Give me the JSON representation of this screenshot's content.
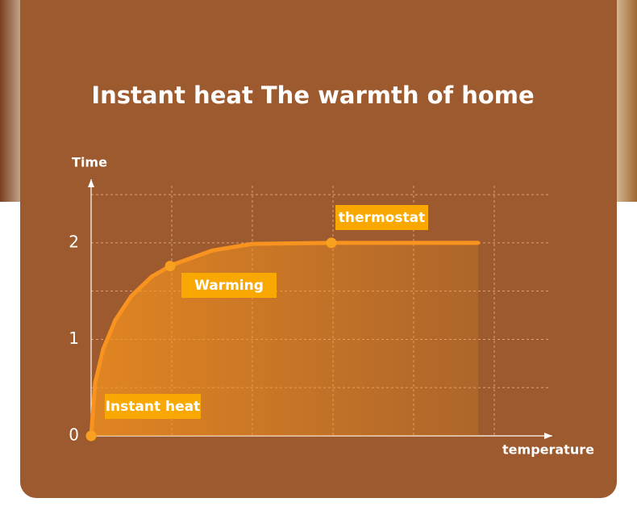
{
  "chart_data": {
    "type": "line",
    "title": "Instant heat The warmth of home",
    "xlabel": "temperature",
    "ylabel": "Time",
    "x": [
      0,
      0.05,
      0.15,
      0.3,
      0.5,
      0.75,
      1,
      1.5,
      2,
      3,
      4,
      4.8
    ],
    "values": [
      0,
      0.55,
      0.9,
      1.2,
      1.45,
      1.65,
      1.77,
      1.92,
      1.99,
      2,
      2,
      2
    ],
    "color": "#f7931e",
    "points": {
      "x": [
        0,
        0.98,
        2.98
      ],
      "y": [
        0,
        1.76,
        2
      ]
    },
    "annotations": [
      "Instant heat",
      "Warming",
      "thermostat"
    ],
    "xlim": [
      0,
      5.72
    ],
    "ylim": [
      0,
      2.66
    ],
    "yticks": [
      0,
      1,
      2
    ],
    "xgrid": [
      1,
      2,
      3,
      4,
      5
    ],
    "ygrid": [
      0.5,
      1,
      1.5,
      2,
      2.5
    ]
  }
}
